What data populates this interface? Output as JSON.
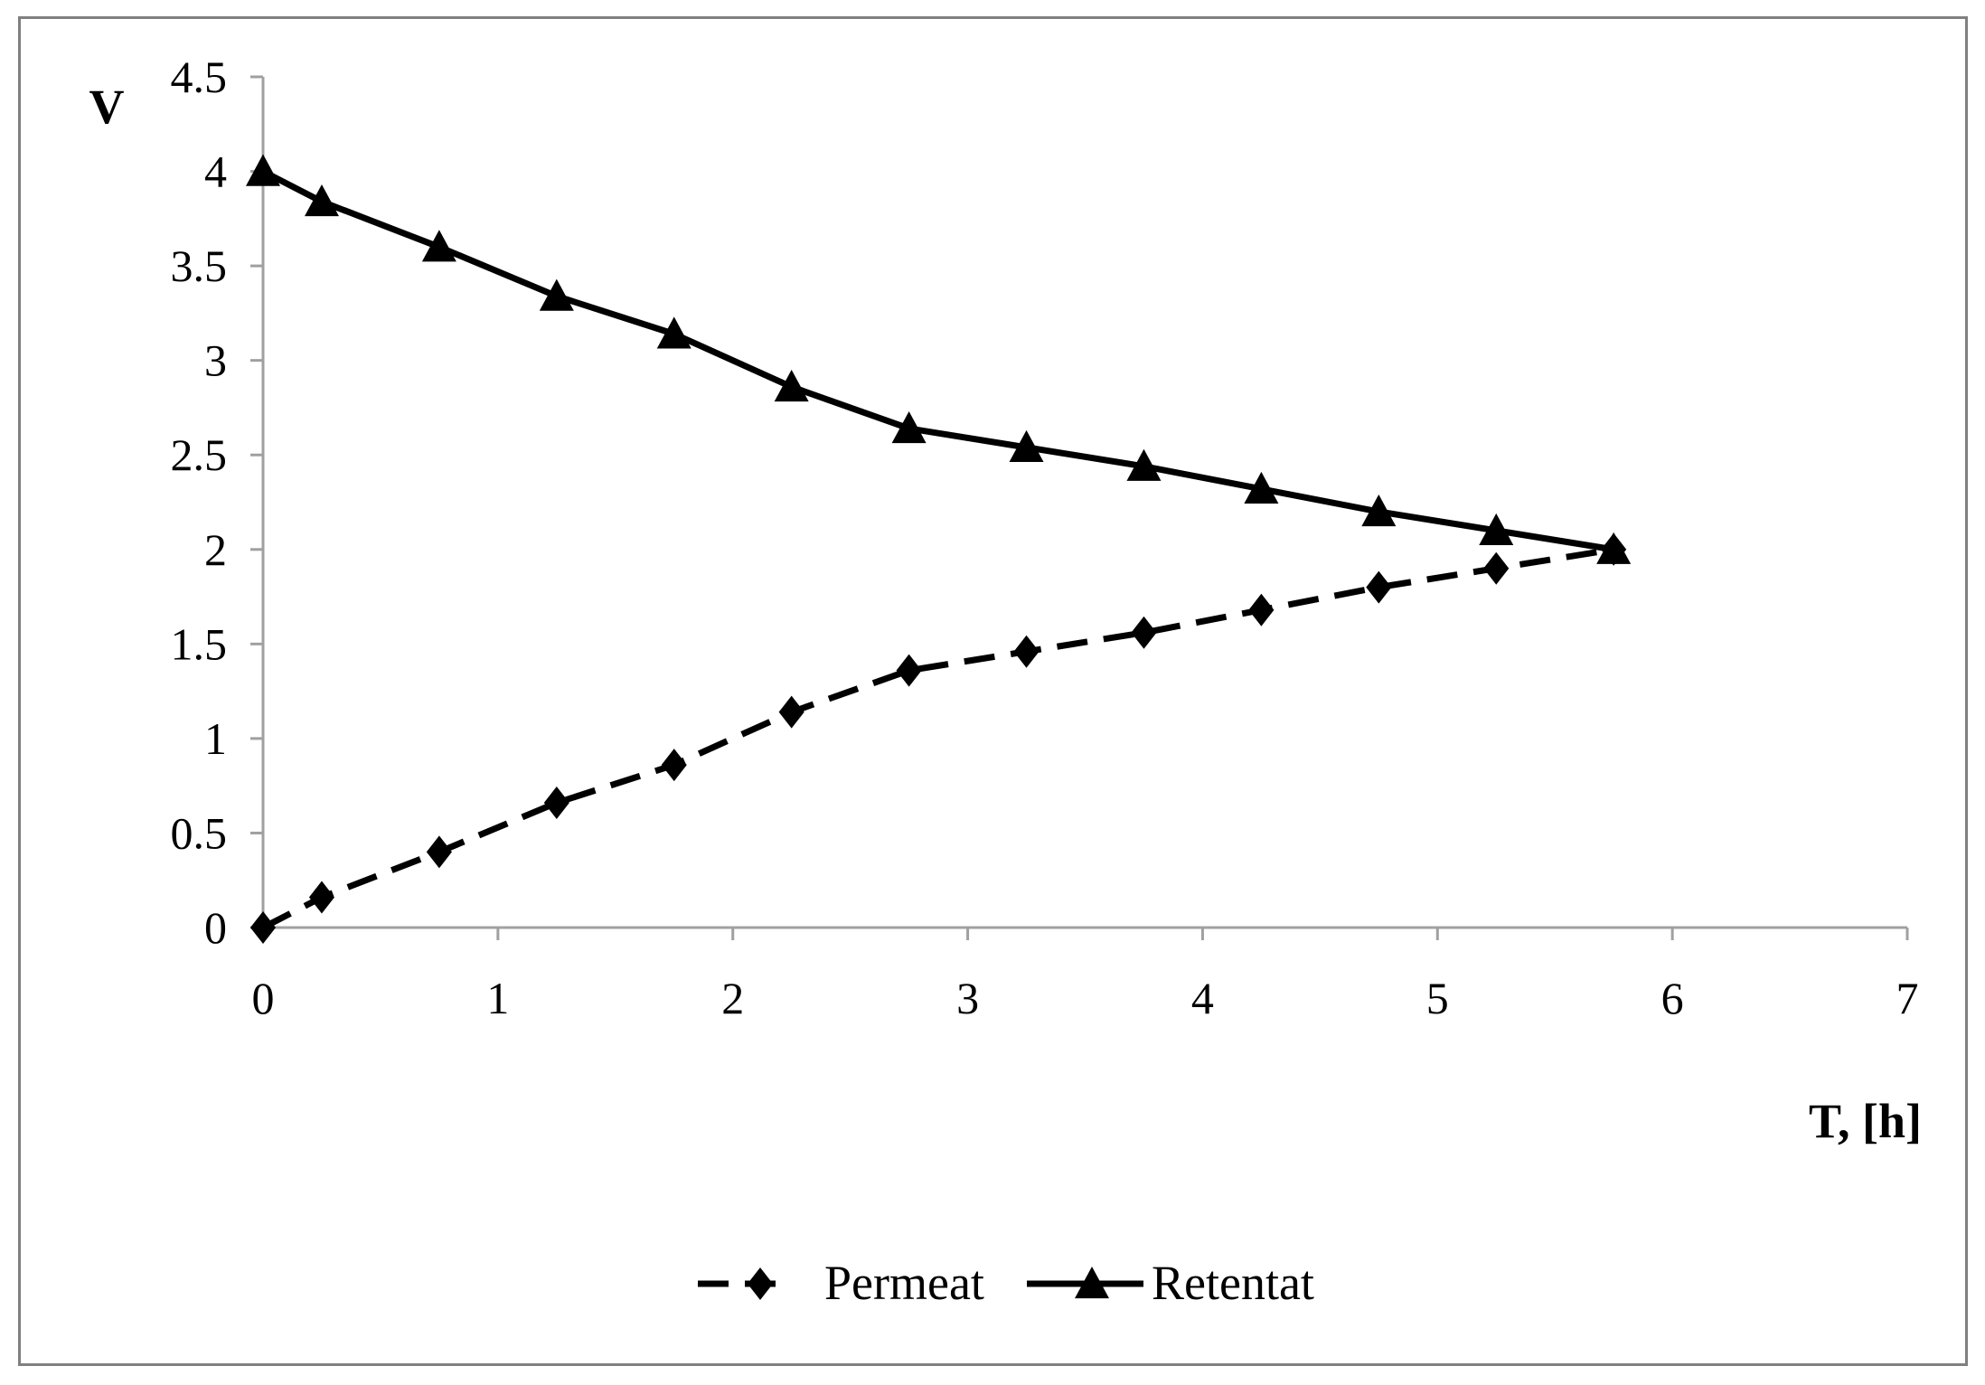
{
  "chart_data": {
    "type": "line",
    "title": "",
    "xlabel": "T, [h]",
    "ylabel": "V",
    "xlim": [
      0,
      7
    ],
    "ylim": [
      0,
      4.5
    ],
    "x_ticks": [
      0,
      1,
      2,
      3,
      4,
      5,
      6,
      7
    ],
    "y_ticks": [
      0,
      0.5,
      1,
      1.5,
      2,
      2.5,
      3,
      3.5,
      4,
      4.5
    ],
    "x_tick_labels": [
      "0",
      "1",
      "2",
      "3",
      "4",
      "5",
      "6",
      "7"
    ],
    "y_tick_labels": [
      "0",
      "0.5",
      "1",
      "1.5",
      "2",
      "2.5",
      "3",
      "3.5",
      "4",
      "4.5"
    ],
    "grid": false,
    "legend_position": "bottom",
    "series": [
      {
        "name": "Permeat",
        "marker": "diamond",
        "line_style": "dashed",
        "color": "#000000",
        "x": [
          0,
          0.25,
          0.75,
          1.25,
          1.75,
          2.25,
          2.75,
          3.25,
          3.75,
          4.25,
          4.75,
          5.25,
          5.75
        ],
        "y": [
          0,
          0.16,
          0.4,
          0.66,
          0.86,
          1.14,
          1.36,
          1.46,
          1.56,
          1.68,
          1.8,
          1.9,
          2.0
        ]
      },
      {
        "name": "Retentat",
        "marker": "triangle",
        "line_style": "solid",
        "color": "#000000",
        "x": [
          0,
          0.25,
          0.75,
          1.25,
          1.75,
          2.25,
          2.75,
          3.25,
          3.75,
          4.25,
          4.75,
          5.25,
          5.75
        ],
        "y": [
          4.0,
          3.84,
          3.6,
          3.34,
          3.14,
          2.86,
          2.64,
          2.54,
          2.44,
          2.32,
          2.2,
          2.1,
          2.0
        ]
      }
    ]
  }
}
